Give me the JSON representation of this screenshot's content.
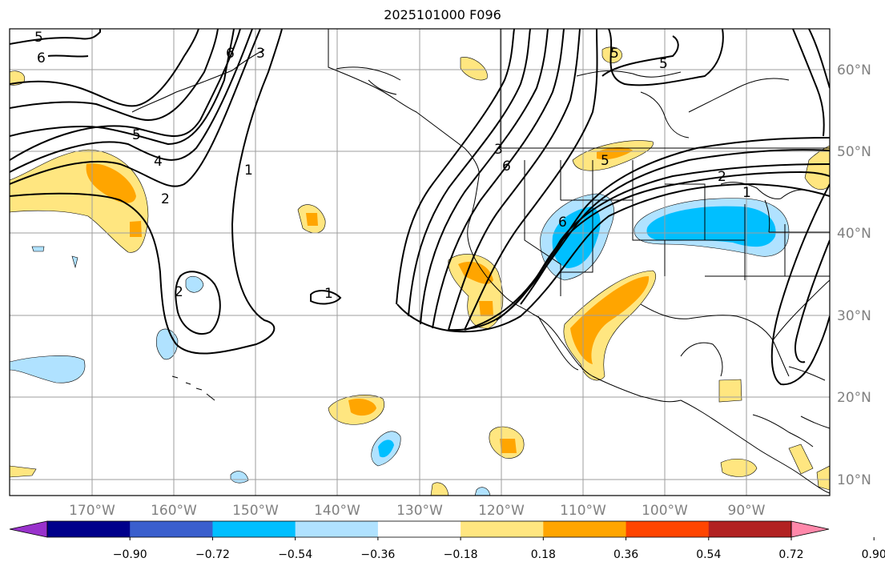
{
  "title": "2025101000 F096",
  "map": {
    "lon_labels": [
      "170°W",
      "160°W",
      "150°W",
      "140°W",
      "130°W",
      "120°W",
      "110°W",
      "100°W",
      "90°W"
    ],
    "lat_labels": [
      "60°N",
      "50°N",
      "40°N",
      "30°N",
      "20°N",
      "10°N"
    ],
    "contour_labels": [
      "5",
      "6",
      "6",
      "3",
      "5",
      "4",
      "2",
      "1",
      "2",
      "1",
      "3",
      "6",
      "5",
      "2",
      "1",
      "5",
      "5",
      "6"
    ],
    "colors": {
      "land_line": "#000000",
      "grid": "#9e9e9e",
      "contour": "#000000"
    }
  },
  "colorbar": {
    "colors": [
      "#9932cc",
      "#00008b",
      "#3a5fcd",
      "#00bfff",
      "#b0e2ff",
      "#ffffff",
      "#ffe680",
      "#ffa500",
      "#ff4500",
      "#b22222",
      "#ff88aa"
    ],
    "ticks": [
      "−0.90",
      "−0.72",
      "−0.54",
      "−0.36",
      "−0.18",
      "0.18",
      "0.36",
      "0.54",
      "0.72",
      "0.90"
    ]
  }
}
